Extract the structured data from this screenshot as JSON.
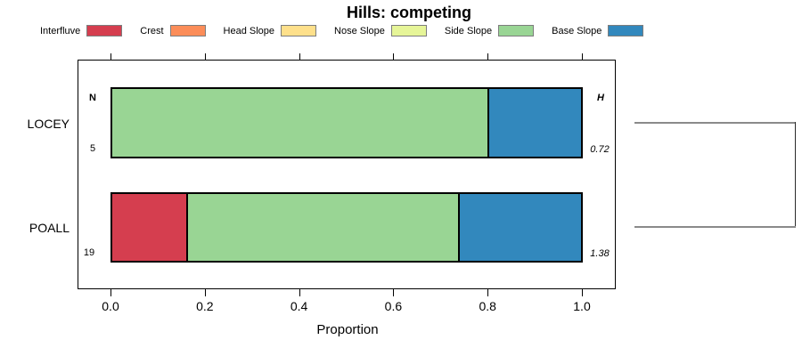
{
  "title": "Hills: competing",
  "axis": {
    "xlabel": "Proportion",
    "tick_labels": [
      "0.0",
      "0.2",
      "0.4",
      "0.6",
      "0.8",
      "1.0"
    ]
  },
  "rows": {
    "labels": [
      "LOCEY",
      "POALL"
    ]
  },
  "chart_data": {
    "type": "bar",
    "stacked": true,
    "orientation": "horizontal",
    "title": "Hills: competing",
    "xlabel": "Proportion",
    "xlim": [
      0,
      1
    ],
    "xticks": [
      0,
      0.2,
      0.4,
      0.6,
      0.8,
      1.0
    ],
    "grid": false,
    "legend_position": "top",
    "categories": [
      "LOCEY",
      "POALL"
    ],
    "series": [
      {
        "name": "Interfluve",
        "color": "#D53E4F",
        "values": [
          0,
          0.158
        ]
      },
      {
        "name": "Crest",
        "color": "#FC8D59",
        "values": [
          0,
          0
        ]
      },
      {
        "name": "Head Slope",
        "color": "#FEE08B",
        "values": [
          0,
          0
        ]
      },
      {
        "name": "Nose Slope",
        "color": "#E6F598",
        "values": [
          0,
          0
        ]
      },
      {
        "name": "Side Slope",
        "color": "#99D594",
        "values": [
          0.8,
          0.579
        ]
      },
      {
        "name": "Base Slope",
        "color": "#3288BD",
        "values": [
          0.2,
          0.263
        ]
      }
    ],
    "annotations": {
      "n_header": "N",
      "h_header": "H",
      "n_values": [
        "5",
        "19"
      ],
      "h_values": [
        "0.72",
        "1.38"
      ]
    },
    "right_bracket": "joins LOCEY and POALL rows"
  },
  "colors": {
    "bar_border": "#000000",
    "bracket_gray": "#8a8a8a"
  }
}
